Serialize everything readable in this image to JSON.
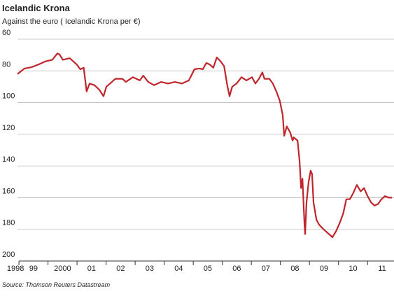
{
  "chart_data": {
    "type": "line",
    "title": "Icelandic Krona",
    "subtitle": "Against the euro ( Icelandic Krona per €)",
    "source": "Source: Thomson Reuters Datastream",
    "color": "#c0262b",
    "y_inverted": true,
    "grid": true,
    "ylim": [
      60,
      200
    ],
    "yticks": [
      60,
      80,
      100,
      120,
      140,
      160,
      180,
      200
    ],
    "xlim": [
      1998.95,
      2011.91
    ],
    "xticks": [
      {
        "value": 1998.88,
        "label": "1998"
      },
      {
        "value": 1999.5,
        "label": "99"
      },
      {
        "value": 2000.5,
        "label": "2000"
      },
      {
        "value": 2001.5,
        "label": "01"
      },
      {
        "value": 2002.5,
        "label": "02"
      },
      {
        "value": 2003.5,
        "label": "03"
      },
      {
        "value": 2004.5,
        "label": "04"
      },
      {
        "value": 2005.5,
        "label": "05"
      },
      {
        "value": 2006.5,
        "label": "06"
      },
      {
        "value": 2007.5,
        "label": "07"
      },
      {
        "value": 2008.5,
        "label": "08"
      },
      {
        "value": 2009.5,
        "label": "09"
      },
      {
        "value": 2010.5,
        "label": "10"
      },
      {
        "value": 2011.5,
        "label": "11"
      }
    ],
    "xminorticks": [
      1999,
      2000,
      2001,
      2002,
      2003,
      2004,
      2005,
      2006,
      2007,
      2008,
      2009,
      2010,
      2011
    ],
    "x": [
      1998.95,
      1999.19,
      1999.43,
      1999.67,
      1999.91,
      2000.15,
      2000.32,
      2000.39,
      2000.51,
      2000.75,
      2000.99,
      2001.11,
      2001.23,
      2001.33,
      2001.43,
      2001.6,
      2001.77,
      2001.91,
      2002.01,
      2002.2,
      2002.32,
      2002.56,
      2002.68,
      2002.92,
      2003.16,
      2003.28,
      2003.45,
      2003.65,
      2003.89,
      2004.13,
      2004.37,
      2004.61,
      2004.85,
      2005.04,
      2005.21,
      2005.33,
      2005.45,
      2005.57,
      2005.69,
      2005.81,
      2005.94,
      2006.06,
      2006.18,
      2006.25,
      2006.34,
      2006.49,
      2006.66,
      2006.83,
      2007.02,
      2007.14,
      2007.26,
      2007.38,
      2007.45,
      2007.62,
      2007.74,
      2007.86,
      2007.98,
      2008.08,
      2008.13,
      2008.22,
      2008.34,
      2008.42,
      2008.46,
      2008.59,
      2008.66,
      2008.71,
      2008.76,
      2008.83,
      2008.85,
      2008.9,
      2008.97,
      2009.04,
      2009.09,
      2009.14,
      2009.24,
      2009.33,
      2009.43,
      2009.55,
      2009.67,
      2009.79,
      2009.92,
      2010.04,
      2010.16,
      2010.27,
      2010.39,
      2010.51,
      2010.63,
      2010.76,
      2010.88,
      2011.0,
      2011.12,
      2011.24,
      2011.36,
      2011.48,
      2011.6,
      2011.72,
      2011.84
    ],
    "values": [
      82,
      78.5,
      77.7,
      76,
      74,
      73,
      69,
      69.5,
      73,
      72,
      76,
      79,
      78,
      93,
      88,
      89,
      92,
      96,
      90,
      87,
      85,
      85,
      87,
      84,
      86,
      83,
      87,
      89,
      87,
      88,
      87,
      88,
      86,
      79,
      78.5,
      79,
      75,
      76,
      78,
      71.5,
      74,
      77,
      90,
      96,
      90,
      88,
      84,
      86,
      84,
      88,
      85,
      81,
      85,
      85,
      88,
      93,
      99,
      108,
      121,
      115,
      119,
      124,
      122,
      124,
      137,
      154,
      148,
      177,
      183,
      163,
      150,
      143,
      145,
      163,
      174,
      177,
      179,
      181,
      183,
      185,
      181,
      176,
      170,
      161,
      161,
      157,
      152,
      156,
      154,
      159,
      163,
      165,
      164,
      161,
      159,
      160,
      160
    ]
  }
}
